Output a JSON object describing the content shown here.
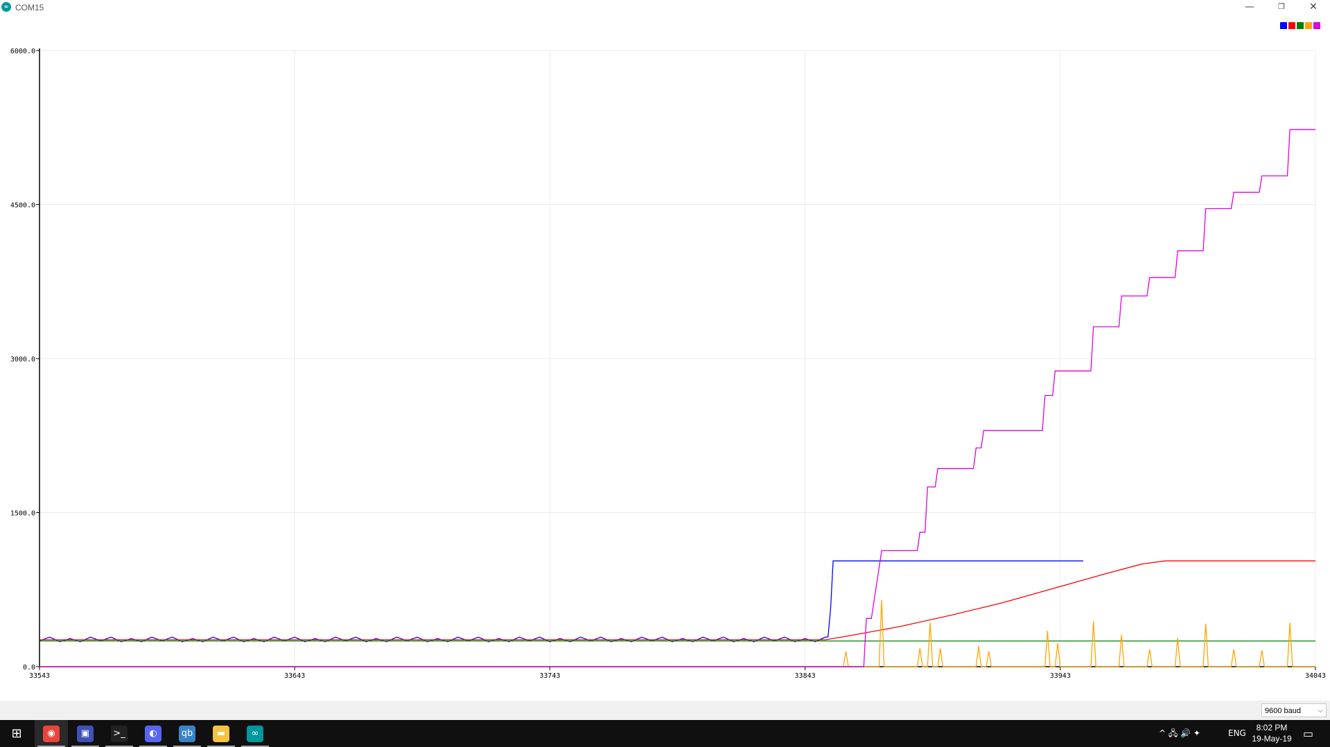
{
  "window": {
    "title": "COM15",
    "app_icon_glyph": "∞",
    "minimize": "—",
    "maximize": "❐",
    "close": "✕"
  },
  "colors": {
    "plot_bg": "#ffffff",
    "grid": "#ebebeb",
    "axis": "#000000"
  },
  "chart_data": {
    "type": "line",
    "title": "",
    "xlabel": "",
    "ylabel": "",
    "xlim": [
      33543,
      34043
    ],
    "ylim": [
      0,
      6000
    ],
    "x_ticks": [
      "33543",
      "33643",
      "33743",
      "33843",
      "33943",
      "34043"
    ],
    "y_ticks": [
      "0.0",
      "1500.0",
      "3000.0",
      "4500.0",
      "6000.0"
    ],
    "grid": true,
    "legend_position": "top-right",
    "series": [
      {
        "color": "#0000ff",
        "noise": {
          "from": 33543,
          "to": 33852,
          "base": 260,
          "amp": 28,
          "step": 4
        },
        "points": [
          [
            33852,
            290
          ],
          [
            33853,
            560
          ],
          [
            33854,
            1030
          ],
          [
            33952,
            1030
          ]
        ]
      },
      {
        "color": "#ff0000",
        "points": [
          [
            33543,
            262
          ],
          [
            33851,
            262
          ],
          [
            33860,
            300
          ],
          [
            33880,
            390
          ],
          [
            33900,
            500
          ],
          [
            33920,
            620
          ],
          [
            33940,
            760
          ],
          [
            33960,
            900
          ],
          [
            33975,
            1000
          ],
          [
            33984,
            1030
          ],
          [
            34043,
            1030
          ]
        ]
      },
      {
        "color": "#008000",
        "points": [
          [
            33543,
            250
          ],
          [
            34043,
            250
          ]
        ]
      },
      {
        "color": "#ffa500",
        "points": [
          [
            33543,
            0
          ],
          [
            33858,
            0
          ],
          [
            33859,
            150
          ],
          [
            33860,
            0
          ],
          [
            33872,
            0
          ],
          [
            33873,
            650
          ],
          [
            33874,
            0
          ],
          [
            33887,
            0
          ],
          [
            33888,
            180
          ],
          [
            33889,
            0
          ],
          [
            33891,
            0
          ],
          [
            33892,
            430
          ],
          [
            33893,
            0
          ],
          [
            33895,
            0
          ],
          [
            33896,
            180
          ],
          [
            33897,
            0
          ],
          [
            33910,
            0
          ],
          [
            33911,
            200
          ],
          [
            33912,
            0
          ],
          [
            33914,
            0
          ],
          [
            33915,
            150
          ],
          [
            33916,
            0
          ],
          [
            33937,
            0
          ],
          [
            33938,
            350
          ],
          [
            33939,
            0
          ],
          [
            33941,
            0
          ],
          [
            33942,
            230
          ],
          [
            33943,
            0
          ],
          [
            33955,
            0
          ],
          [
            33956,
            440
          ],
          [
            33957,
            0
          ],
          [
            33966,
            0
          ],
          [
            33967,
            310
          ],
          [
            33968,
            0
          ],
          [
            33977,
            0
          ],
          [
            33978,
            170
          ],
          [
            33979,
            0
          ],
          [
            33988,
            0
          ],
          [
            33989,
            280
          ],
          [
            33990,
            0
          ],
          [
            33999,
            0
          ],
          [
            34000,
            420
          ],
          [
            34001,
            0
          ],
          [
            34010,
            0
          ],
          [
            34011,
            170
          ],
          [
            34012,
            0
          ],
          [
            34021,
            0
          ],
          [
            34022,
            160
          ],
          [
            34023,
            0
          ],
          [
            34032,
            0
          ],
          [
            34033,
            430
          ],
          [
            34034,
            0
          ],
          [
            34043,
            0
          ]
        ]
      },
      {
        "color": "#dd00dd",
        "points": [
          [
            33543,
            0
          ],
          [
            33866,
            0
          ],
          [
            33867,
            470
          ],
          [
            33869,
            470
          ],
          [
            33873,
            1130
          ],
          [
            33887,
            1130
          ],
          [
            33888,
            1310
          ],
          [
            33890,
            1310
          ],
          [
            33891,
            1750
          ],
          [
            33894,
            1750
          ],
          [
            33895,
            1930
          ],
          [
            33909,
            1930
          ],
          [
            33910,
            2130
          ],
          [
            33912,
            2130
          ],
          [
            33913,
            2300
          ],
          [
            33936,
            2300
          ],
          [
            33937,
            2640
          ],
          [
            33940,
            2640
          ],
          [
            33941,
            2880
          ],
          [
            33955,
            2880
          ],
          [
            33956,
            3310
          ],
          [
            33966,
            3310
          ],
          [
            33967,
            3610
          ],
          [
            33977,
            3610
          ],
          [
            33978,
            3790
          ],
          [
            33988,
            3790
          ],
          [
            33989,
            4050
          ],
          [
            33999,
            4050
          ],
          [
            34000,
            4460
          ],
          [
            34010,
            4460
          ],
          [
            34011,
            4620
          ],
          [
            34021,
            4620
          ],
          [
            34022,
            4780
          ],
          [
            34032,
            4780
          ],
          [
            34033,
            5230
          ],
          [
            34043,
            5230
          ]
        ]
      }
    ]
  },
  "footer": {
    "baud_value": "9600 baud",
    "baud_chevron": "⌵"
  },
  "taskbar": {
    "start_glyph": "⊞",
    "apps": [
      {
        "glyph": "◉",
        "color": "#e8453c"
      },
      {
        "glyph": "▣",
        "color": "#3f51b5"
      },
      {
        "glyph": ">_",
        "color": "#222222"
      },
      {
        "glyph": "◐",
        "color": "#5865f2"
      },
      {
        "glyph": "qb",
        "color": "#3b83c6"
      },
      {
        "glyph": "▬",
        "color": "#f5c242"
      },
      {
        "glyph": "∞",
        "color": "#00979c"
      }
    ],
    "tray_icons": "^  🖧  🔊  ✦",
    "language": "ENG",
    "time": "8:02 PM",
    "date": "19-May-19",
    "notification_glyph": "▭"
  }
}
